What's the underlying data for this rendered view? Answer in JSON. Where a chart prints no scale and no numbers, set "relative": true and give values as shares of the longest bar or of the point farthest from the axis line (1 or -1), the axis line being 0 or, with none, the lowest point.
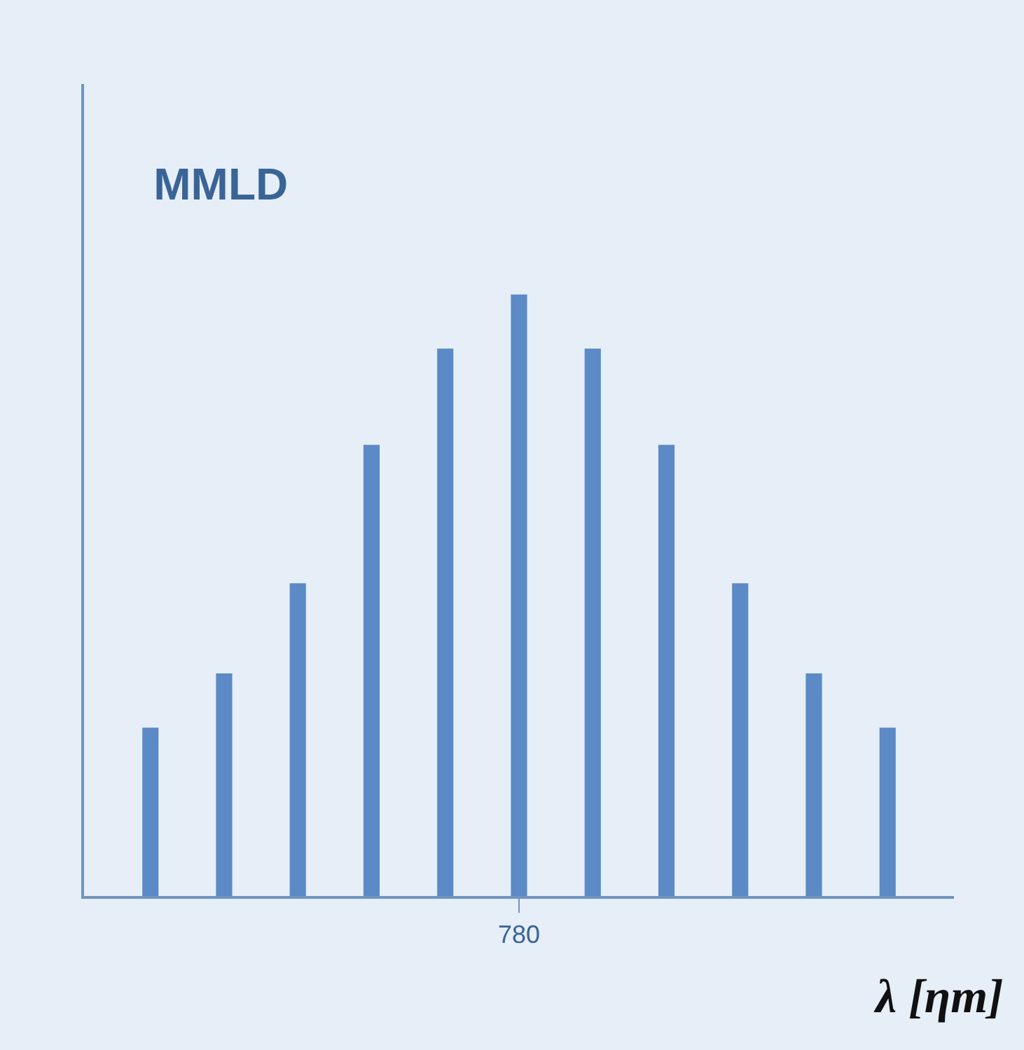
{
  "chart_data": {
    "type": "bar",
    "title": "MMLD",
    "xlabel": "λ [ηm]",
    "relative": true,
    "categories": [
      null,
      null,
      null,
      null,
      null,
      "780",
      null,
      null,
      null,
      null,
      null
    ],
    "values": [
      0.28,
      0.37,
      0.52,
      0.75,
      0.91,
      1,
      0.91,
      0.75,
      0.52,
      0.37,
      0.28
    ],
    "color": "#5b8ac6",
    "grid": false,
    "legend": false
  }
}
